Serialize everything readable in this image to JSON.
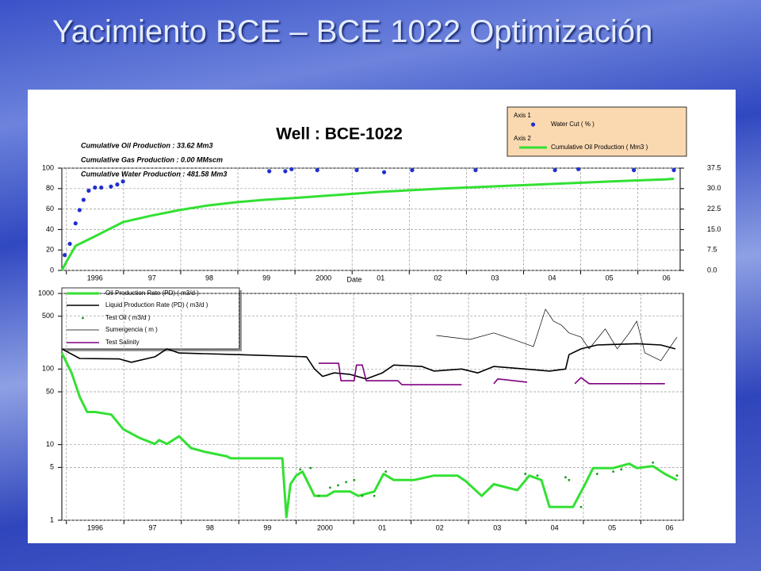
{
  "slide_title": "Yacimiento BCE – BCE 1022 Optimización",
  "chart_data": [
    {
      "type": "line",
      "title": "Well : BCE-1022",
      "xlabel": "Date",
      "annotations": [
        "Cumulative Oil Production : 33.62 Mm3",
        "Cumulative Gas Production : 0.00 MMscm",
        "Cumulative Water Production : 481.58 Mm3"
      ],
      "annotation_colors": [
        "#1a9a1a",
        "#e00000",
        "#1020c0"
      ],
      "legend_groups": [
        "Axis 1",
        "Axis 2"
      ],
      "xlim": [
        1995.92,
        2006.74
      ],
      "xticks": [
        {
          "value": 1996,
          "label": "1996"
        },
        {
          "value": 1997,
          "label": "97"
        },
        {
          "value": 1998,
          "label": "98"
        },
        {
          "value": 1999,
          "label": "99"
        },
        {
          "value": 2000,
          "label": "2000"
        },
        {
          "value": 2001,
          "label": "01"
        },
        {
          "value": 2002,
          "label": "02"
        },
        {
          "value": 2003,
          "label": "03"
        },
        {
          "value": 2004,
          "label": "04"
        },
        {
          "value": 2005,
          "label": "05"
        },
        {
          "value": 2006,
          "label": "06"
        }
      ],
      "ylim": [
        0,
        100
      ],
      "yticks": [
        0,
        20,
        40,
        60,
        80,
        100
      ],
      "y2lim": [
        0,
        37.5
      ],
      "y2ticks": [
        {
          "value": 0,
          "label": "0.0"
        },
        7.5,
        {
          "value": 15,
          "label": "15.0"
        },
        22.5,
        {
          "value": 30,
          "label": "30.0"
        },
        37.5
      ],
      "grid": true,
      "series": [
        {
          "name": "Water Cut ( % )",
          "color": "#2030d0",
          "mode": "markers",
          "x": [
            1995.97,
            1996.06,
            1996.16,
            1996.23,
            1996.3,
            1996.39,
            1996.5,
            1996.61,
            1996.78,
            1996.89,
            1996.99,
            1999.55,
            1999.83,
            1999.94,
            2000.39,
            2001.08,
            2001.56,
            2002.05,
            2003.16,
            2004.55,
            2004.96,
            2005.93,
            2006.63
          ],
          "values": [
            15,
            26,
            46,
            59,
            69,
            78,
            81,
            81,
            82,
            84,
            87,
            97,
            97,
            99,
            98,
            98,
            96,
            98,
            98,
            98,
            99,
            98,
            98
          ]
        },
        {
          "name": "Cumulative Oil Production ( Mm3 )",
          "color": "#33e033",
          "mode": "line",
          "axis": "y2",
          "x": [
            1995.92,
            1996.0,
            1996.16,
            1996.5,
            1996.99,
            1997.47,
            1997.97,
            1998.47,
            1998.97,
            1999.48,
            1999.97,
            2000.48,
            2001.5,
            2002.48,
            2003.48,
            2004.48,
            2005.49,
            2006.5,
            2006.63
          ],
          "values": [
            0,
            3.2,
            9,
            12.5,
            17.7,
            20,
            22.1,
            23.8,
            25,
            25.9,
            26.5,
            27.3,
            28.8,
            29.9,
            30.8,
            31.7,
            32.6,
            33.4,
            33.6
          ]
        }
      ]
    },
    {
      "type": "line",
      "log_scale": true,
      "xlim": [
        1995.92,
        2006.74
      ],
      "xticks": [
        {
          "value": 1996,
          "label": "1996"
        },
        {
          "value": 1997,
          "label": "97"
        },
        {
          "value": 1998,
          "label": "98"
        },
        {
          "value": 1999,
          "label": "99"
        },
        {
          "value": 2000,
          "label": "2000"
        },
        {
          "value": 2001,
          "label": "01"
        },
        {
          "value": 2002,
          "label": "02"
        },
        {
          "value": 2003,
          "label": "03"
        },
        {
          "value": 2004,
          "label": "04"
        },
        {
          "value": 2005,
          "label": "05"
        },
        {
          "value": 2006,
          "label": "06"
        }
      ],
      "ylim": [
        1,
        1000
      ],
      "yticks": [
        1,
        5,
        10,
        50,
        100,
        500,
        1000
      ],
      "grid": true,
      "series": [
        {
          "name": "Oil Production Rate (PD) ( m3/d )",
          "color": "#33e033",
          "mode": "line",
          "width": 3,
          "x": [
            1995.92,
            1996.09,
            1996.23,
            1996.36,
            1996.5,
            1996.78,
            1996.99,
            1997.27,
            1997.54,
            1997.61,
            1997.75,
            1997.96,
            1998.17,
            1998.42,
            1998.79,
            1998.86,
            1999.76,
            1999.79,
            1999.83,
            1999.9,
            2000.0,
            2000.11,
            2000.32,
            2000.53,
            2000.66,
            2000.94,
            2001.08,
            2001.36,
            2001.52,
            2001.7,
            2002.05,
            2002.4,
            2002.81,
            2002.95,
            2003.23,
            2003.44,
            2003.85,
            2004.06,
            2004.27,
            2004.41,
            2004.62,
            2004.82,
            2005.03,
            2005.17,
            2005.52,
            2005.8,
            2005.93,
            2006.21,
            2006.42,
            2006.63
          ],
          "values": [
            163,
            89,
            43,
            27,
            27,
            25,
            16,
            12.3,
            10.2,
            11.5,
            10.2,
            12.9,
            9,
            8,
            7,
            6.6,
            6.6,
            3,
            1.1,
            3,
            3.9,
            4.4,
            2.1,
            2.1,
            2.4,
            2.4,
            2.1,
            2.4,
            4.1,
            3.4,
            3.4,
            3.9,
            3.9,
            3.3,
            2.1,
            3,
            2.5,
            3.9,
            3.4,
            1.5,
            1.5,
            1.5,
            3,
            4.9,
            4.9,
            5.6,
            4.9,
            5.2,
            4.1,
            3.4
          ]
        },
        {
          "name": "Liquid Production Rate (PD) ( m3/d )",
          "color": "#000000",
          "mode": "line",
          "width": 1.6,
          "x": [
            1995.92,
            1996.23,
            1996.92,
            1997.13,
            1997.54,
            1997.75,
            1997.96,
            1999.0,
            2000.18,
            2000.32,
            2000.46,
            2000.66,
            2000.94,
            2001.22,
            2001.5,
            2001.7,
            2002.19,
            2002.4,
            2002.88,
            2003.16,
            2003.44,
            2003.99,
            2004.41,
            2004.69,
            2004.75,
            2004.96,
            2005.24,
            2005.93,
            2006.35,
            2006.6
          ],
          "values": [
            185,
            138,
            136,
            123,
            145,
            185,
            163,
            155,
            145,
            100,
            80,
            89,
            85,
            74,
            89,
            113,
            108,
            94,
            100,
            89,
            108,
            100,
            94,
            100,
            155,
            185,
            208,
            216,
            208,
            185
          ]
        },
        {
          "name": "Test Oil ( m3/d )",
          "color": "#1a9a1a",
          "mode": "markers",
          "x": [
            2000.07,
            2000.25,
            2000.39,
            2000.59,
            2000.73,
            2000.87,
            2001.01,
            2001.15,
            2001.36,
            2001.56,
            2003.99,
            2004.2,
            2004.69,
            2004.75,
            2004.96,
            2005.24,
            2005.52,
            2005.66,
            2006.21,
            2006.63
          ],
          "values": [
            4.7,
            4.9,
            2.1,
            2.7,
            2.9,
            3.2,
            3.4,
            2.1,
            2.1,
            4.4,
            4.1,
            3.9,
            3.7,
            3.4,
            1.5,
            4.1,
            4.4,
            4.7,
            5.8,
            3.9
          ]
        },
        {
          "name": "Sumergencia ( m )",
          "color": "#000000",
          "mode": "line",
          "width": 0.7,
          "x": [
            2002.44,
            2003.02,
            2003.44,
            2003.85,
            2004.13,
            2004.34,
            2004.48,
            2004.62,
            2004.75,
            2004.96,
            2005.1,
            2005.38,
            2005.59,
            2005.8,
            2005.93,
            2006.07,
            2006.35,
            2006.63
          ],
          "values": [
            278,
            246,
            300,
            236,
            198,
            620,
            430,
            380,
            300,
            264,
            185,
            340,
            185,
            300,
            430,
            164,
            129,
            264
          ]
        },
        {
          "name": "Test Salinity",
          "color": "#800080",
          "mode": "line",
          "width": 1.6,
          "x": [
            2000.39,
            2000.74,
            2000.78,
            2001.01,
            2001.05,
            2001.15,
            2001.22,
            2001.77,
            2001.84,
            2002.88,
            2003.2,
            2003.44,
            2003.51,
            2004.02,
            2004.2,
            2004.35,
            2004.6,
            2004.85,
            2004.96,
            2005.1,
            2006.42
          ],
          "values": [
            119,
            119,
            70,
            70,
            113,
            113,
            70,
            70,
            62,
            62,
            null,
            64,
            74,
            67,
            null,
            74,
            null,
            64,
            77,
            64,
            64
          ]
        }
      ]
    }
  ]
}
